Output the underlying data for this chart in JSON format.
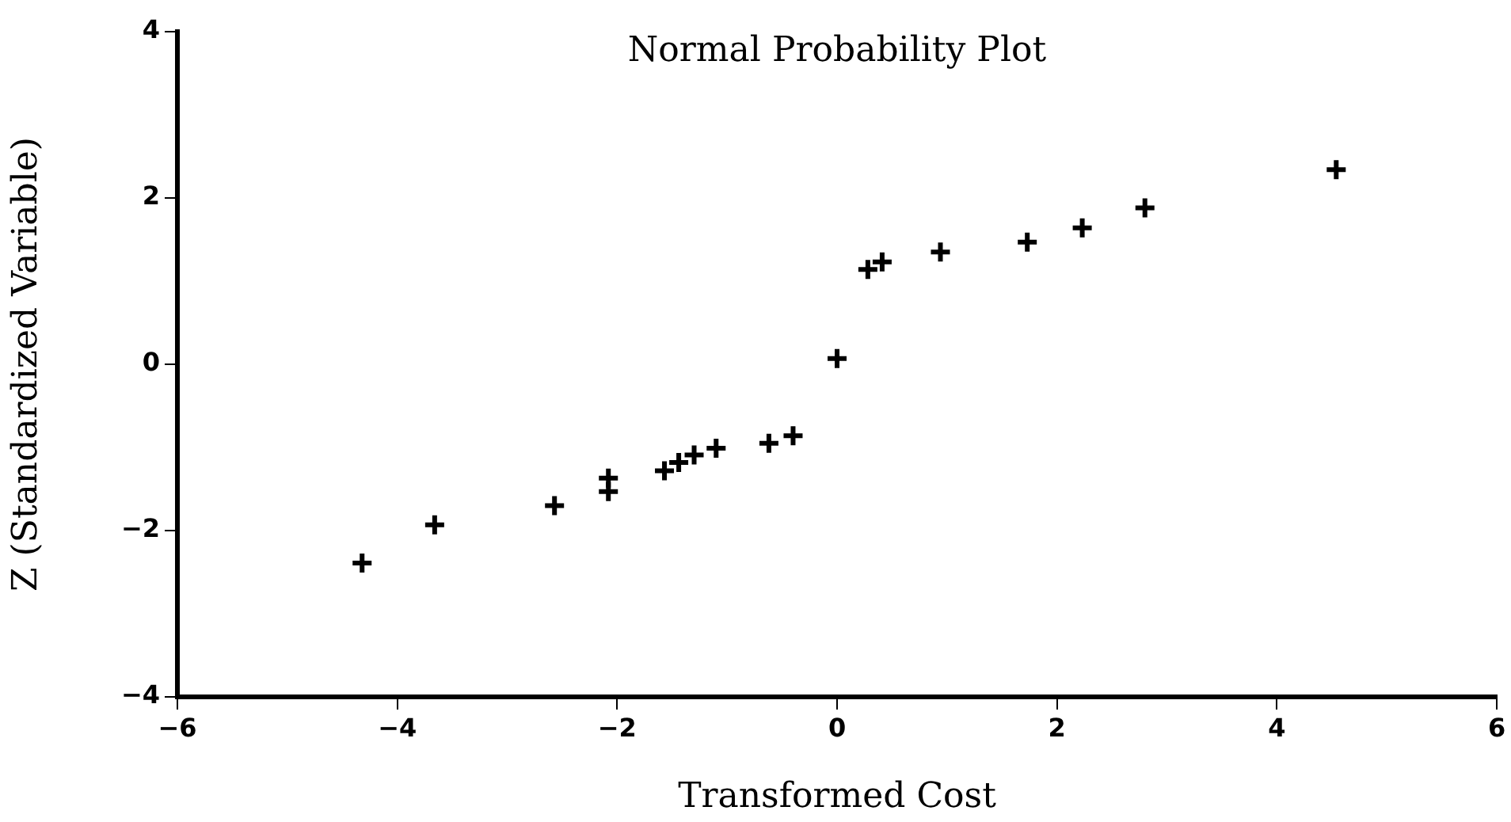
{
  "chart_data": {
    "type": "scatter",
    "title": "Normal Probability Plot",
    "xlabel": "Transformed Cost",
    "ylabel": "Z (Standardized Variable)",
    "x": [
      -4.32,
      -3.66,
      -2.57,
      -2.08,
      -2.08,
      -1.57,
      -1.44,
      -1.3,
      -1.1,
      -0.62,
      -0.4,
      0.0,
      0.28,
      0.41,
      0.94,
      1.73,
      2.23,
      2.8,
      4.54
    ],
    "values": [
      -2.39,
      -1.93,
      -1.7,
      -1.53,
      -1.37,
      -1.28,
      -1.18,
      -1.09,
      -1.01,
      -0.95,
      -0.86,
      0.07,
      1.14,
      1.23,
      1.35,
      1.47,
      1.64,
      1.88,
      2.34
    ],
    "color": "#000000",
    "marker": "cross",
    "xlim": [
      -6,
      6
    ],
    "xticks": [
      -6,
      -4,
      -2,
      0,
      2,
      4,
      6
    ],
    "ylim": [
      -4,
      4
    ],
    "yticks": [
      -4,
      -2,
      0,
      2,
      4
    ]
  }
}
